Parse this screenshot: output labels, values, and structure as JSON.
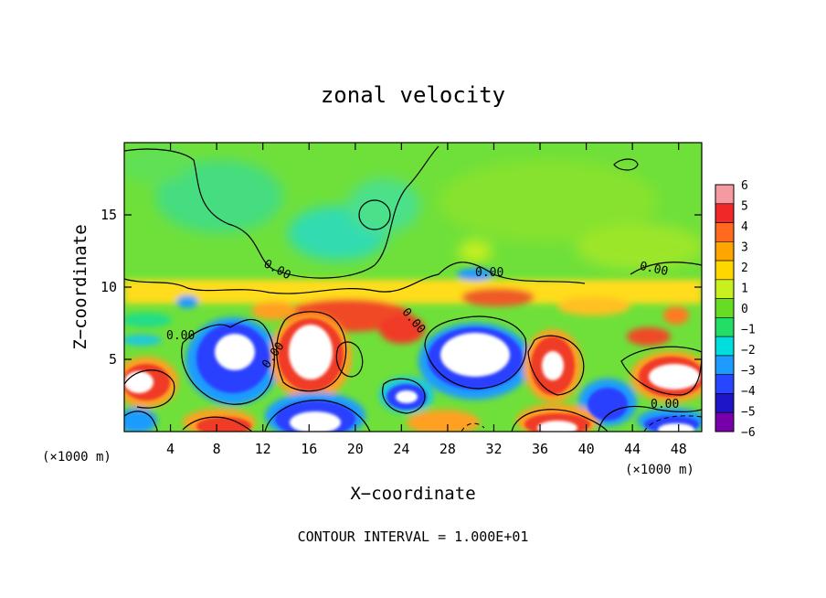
{
  "chart_data": {
    "type": "heatmap",
    "title": "zonal velocity",
    "xlabel": "X−coordinate",
    "ylabel": "Z−coordinate",
    "x_unit_label": "(×1000 m)",
    "x_unit_label_right": "(×1000 m)",
    "footer": "CONTOUR INTERVAL = 1.000E+01",
    "xlim": [
      0,
      50
    ],
    "ylim": [
      0,
      20
    ],
    "x_ticks": [
      4,
      8,
      12,
      16,
      20,
      24,
      28,
      32,
      36,
      40,
      44,
      48
    ],
    "y_ticks": [
      5,
      10,
      15
    ],
    "colorbar": {
      "levels": [
        6,
        5,
        4,
        3,
        2,
        1,
        0,
        -1,
        -2,
        -3,
        -4,
        -5,
        -6
      ],
      "colors": [
        "#f59aa0",
        "#f02828",
        "#ff6a1e",
        "#ffa500",
        "#ffd700",
        "#c8f01e",
        "#66dd22",
        "#22dd66",
        "#00dddd",
        "#1e9bff",
        "#2845ff",
        "#1e14c8",
        "#7800aa"
      ]
    },
    "contour_labels": [
      "0.00",
      "0.00",
      "0.00",
      "0.00",
      "0.00",
      "0.00",
      "0.00"
    ]
  }
}
